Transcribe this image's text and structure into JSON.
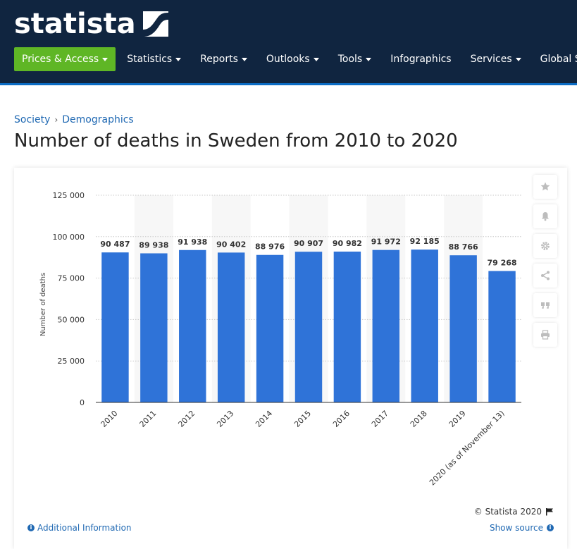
{
  "brand": {
    "name": "statista",
    "logo_icon": "statista-logo-icon",
    "colors": {
      "header": "#102540",
      "accent": "#5fb625",
      "link": "#2069b3",
      "bar": "#2f73d8"
    }
  },
  "nav": [
    {
      "label": "Prices & Access",
      "dropdown": true,
      "primary": true
    },
    {
      "label": "Statistics",
      "dropdown": true
    },
    {
      "label": "Reports",
      "dropdown": true
    },
    {
      "label": "Outlooks",
      "dropdown": true
    },
    {
      "label": "Tools",
      "dropdown": true
    },
    {
      "label": "Infographics",
      "dropdown": false
    },
    {
      "label": "Services",
      "dropdown": true
    },
    {
      "label": "Global Surve",
      "dropdown": false
    }
  ],
  "breadcrumb": [
    "Society",
    "Demographics"
  ],
  "page_title": "Number of deaths in Sweden from 2010 to 2020",
  "tools": [
    "star-icon",
    "bell-icon",
    "gear-icon",
    "share-icon",
    "quote-icon",
    "print-icon"
  ],
  "footer": {
    "additional_info": "Additional Information",
    "copyright": "© Statista 2020",
    "show_source": "Show source"
  },
  "chart_data": {
    "type": "bar",
    "title": "",
    "xlabel": "",
    "ylabel": "Number of deaths",
    "ylim": [
      0,
      125000
    ],
    "yticks": [
      "0",
      "25 000",
      "50 000",
      "75 000",
      "100 000",
      "125 000"
    ],
    "ytick_values": [
      0,
      25000,
      50000,
      75000,
      100000,
      125000
    ],
    "grid": true,
    "categories": [
      "2010",
      "2011",
      "2012",
      "2013",
      "2014",
      "2015",
      "2016",
      "2017",
      "2018",
      "2019",
      "2020 (as of November 13)"
    ],
    "values": [
      90487,
      89938,
      91938,
      90402,
      88976,
      90907,
      90982,
      91972,
      92185,
      88766,
      79268
    ],
    "value_labels": [
      "90 487",
      "89 938",
      "91 938",
      "90 402",
      "88 976",
      "90 907",
      "90 982",
      "91 972",
      "92 185",
      "88 766",
      "79 268"
    ]
  }
}
